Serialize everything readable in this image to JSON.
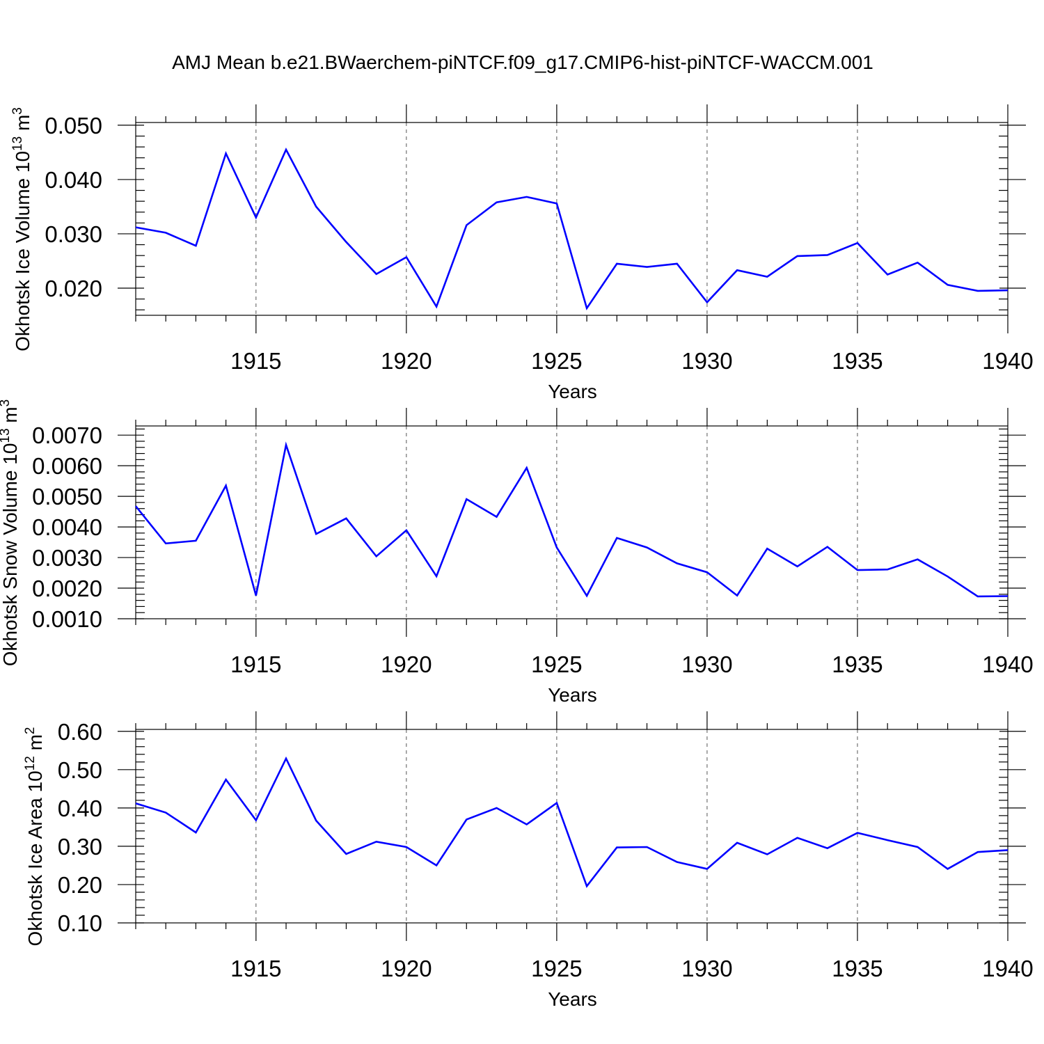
{
  "title": "AMJ Mean b.e21.BWaerchem-piNTCF.f09_g17.CMIP6-hist-piNTCF-WACCM.001",
  "colors": {
    "line": "#0000ff",
    "axis": "#000000",
    "grid": "#555555"
  },
  "chart_data": [
    {
      "type": "line",
      "ylabel": "Okhotsk Ice Volume 10",
      "ylabel_exp": "13",
      "ylabel_unit": " m",
      "ylabel_unit_exp": "3",
      "xlabel": "Years",
      "xlim": [
        1911,
        1940
      ],
      "ylim": [
        0.015,
        0.0505
      ],
      "x_ticks": [
        1915,
        1920,
        1925,
        1930,
        1935,
        1940
      ],
      "x_tick_labels": [
        "1915",
        "1920",
        "1925",
        "1930",
        "1935",
        "1940"
      ],
      "y_ticks": [
        0.02,
        0.03,
        0.04,
        0.05
      ],
      "y_tick_labels": [
        "0.020",
        "0.030",
        "0.040",
        "0.050"
      ],
      "y_minor_step": 0.002,
      "grid": "vertical dashed at major x ticks",
      "x": [
        1911,
        1912,
        1913,
        1914,
        1915,
        1916,
        1917,
        1918,
        1919,
        1920,
        1921,
        1922,
        1923,
        1924,
        1925,
        1926,
        1927,
        1928,
        1929,
        1930,
        1931,
        1932,
        1933,
        1934,
        1935,
        1936,
        1937,
        1938,
        1939,
        1940
      ],
      "series": [
        {
          "values": [
            0.0312,
            0.0302,
            0.0278,
            0.0448,
            0.033,
            0.0455,
            0.035,
            0.0285,
            0.0226,
            0.0257,
            0.0166,
            0.0316,
            0.0358,
            0.0368,
            0.0356,
            0.0163,
            0.0245,
            0.0239,
            0.0245,
            0.0174,
            0.0233,
            0.0221,
            0.0259,
            0.0261,
            0.0283,
            0.0225,
            0.0247,
            0.0206,
            0.0195,
            0.0196
          ]
        }
      ]
    },
    {
      "type": "line",
      "ylabel": "Okhotsk Snow Volume 10",
      "ylabel_exp": "13",
      "ylabel_unit": " m",
      "ylabel_unit_exp": "3",
      "xlabel": "Years",
      "xlim": [
        1911,
        1940
      ],
      "ylim": [
        0.001,
        0.0073
      ],
      "x_ticks": [
        1915,
        1920,
        1925,
        1930,
        1935,
        1940
      ],
      "x_tick_labels": [
        "1915",
        "1920",
        "1925",
        "1930",
        "1935",
        "1940"
      ],
      "y_ticks": [
        0.001,
        0.002,
        0.003,
        0.004,
        0.005,
        0.006,
        0.007
      ],
      "y_tick_labels": [
        "0.0010",
        "0.0020",
        "0.0030",
        "0.0040",
        "0.0050",
        "0.0060",
        "0.0070"
      ],
      "y_minor_step": 0.0002,
      "grid": "vertical dashed at major x ticks",
      "x": [
        1911,
        1912,
        1913,
        1914,
        1915,
        1916,
        1917,
        1918,
        1919,
        1920,
        1921,
        1922,
        1923,
        1924,
        1925,
        1926,
        1927,
        1928,
        1929,
        1930,
        1931,
        1932,
        1933,
        1934,
        1935,
        1936,
        1937,
        1938,
        1939,
        1940
      ],
      "series": [
        {
          "values": [
            0.00468,
            0.00346,
            0.00355,
            0.00535,
            0.00176,
            0.00668,
            0.00377,
            0.00428,
            0.00304,
            0.00389,
            0.00239,
            0.00491,
            0.00433,
            0.00593,
            0.00333,
            0.00175,
            0.00364,
            0.00333,
            0.00281,
            0.00252,
            0.00176,
            0.00329,
            0.00271,
            0.00335,
            0.00259,
            0.00261,
            0.00294,
            0.00238,
            0.00173,
            0.00174
          ]
        }
      ]
    },
    {
      "type": "line",
      "ylabel": "Okhotsk Ice Area 10",
      "ylabel_exp": "12",
      "ylabel_unit": " m",
      "ylabel_unit_exp": "2",
      "xlabel": "Years",
      "xlim": [
        1911,
        1940
      ],
      "ylim": [
        0.1,
        0.605
      ],
      "x_ticks": [
        1915,
        1920,
        1925,
        1930,
        1935,
        1940
      ],
      "x_tick_labels": [
        "1915",
        "1920",
        "1925",
        "1930",
        "1935",
        "1940"
      ],
      "y_ticks": [
        0.1,
        0.2,
        0.3,
        0.4,
        0.5,
        0.6
      ],
      "y_tick_labels": [
        "0.10",
        "0.20",
        "0.30",
        "0.40",
        "0.50",
        "0.60"
      ],
      "y_minor_step": 0.02,
      "grid": "vertical dashed at major x ticks",
      "x": [
        1911,
        1912,
        1913,
        1914,
        1915,
        1916,
        1917,
        1918,
        1919,
        1920,
        1921,
        1922,
        1923,
        1924,
        1925,
        1926,
        1927,
        1928,
        1929,
        1930,
        1931,
        1932,
        1933,
        1934,
        1935,
        1936,
        1937,
        1938,
        1939,
        1940
      ],
      "series": [
        {
          "values": [
            0.412,
            0.388,
            0.336,
            0.474,
            0.368,
            0.529,
            0.367,
            0.28,
            0.312,
            0.298,
            0.25,
            0.37,
            0.4,
            0.357,
            0.413,
            0.196,
            0.297,
            0.298,
            0.259,
            0.241,
            0.309,
            0.279,
            0.322,
            0.295,
            0.335,
            0.316,
            0.298,
            0.241,
            0.285,
            0.29
          ]
        }
      ]
    }
  ]
}
